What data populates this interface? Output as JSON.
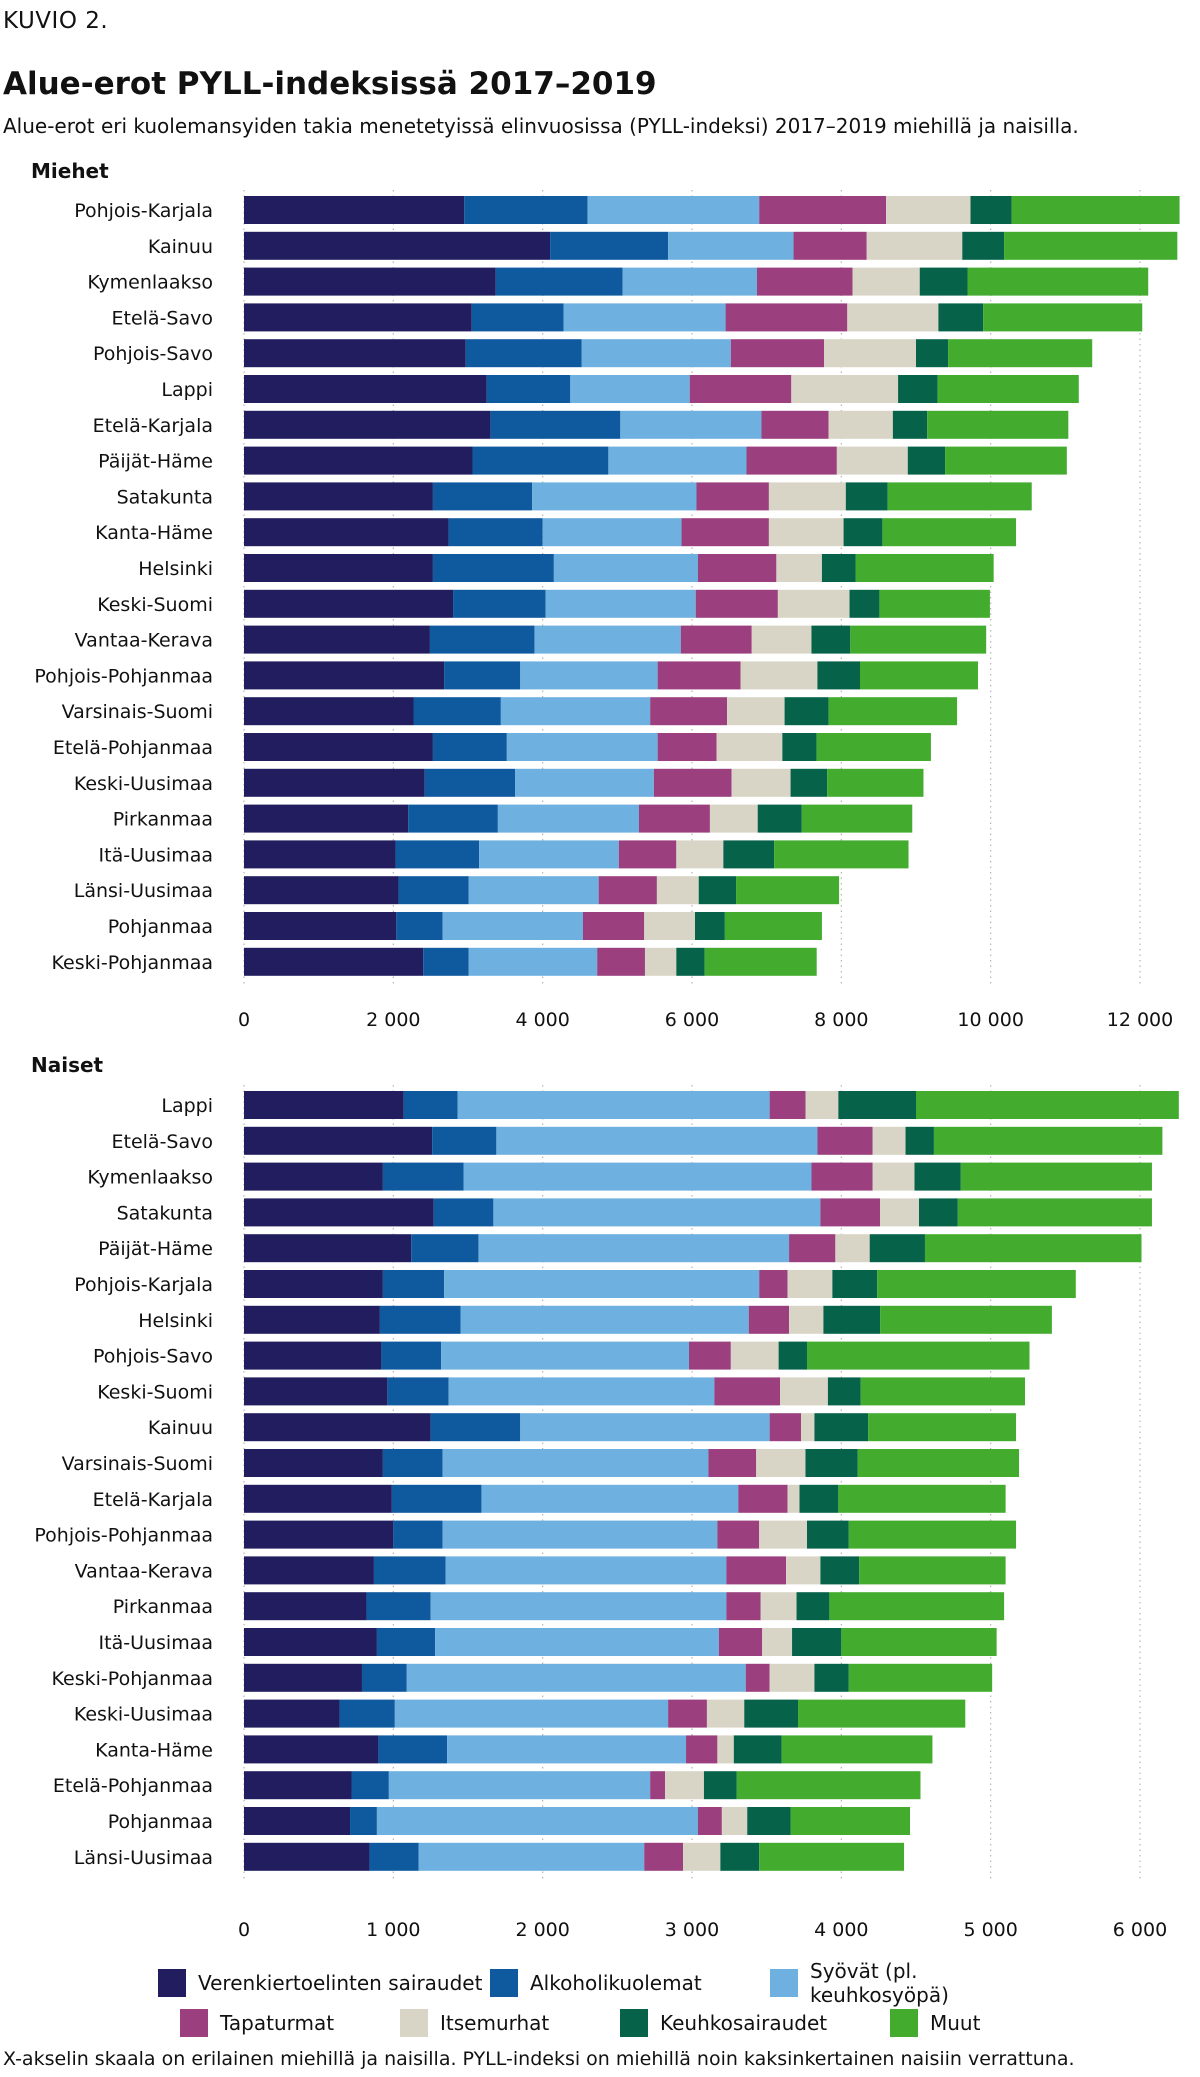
{
  "figure_label": "KUVIO 2.",
  "title": "Alue-erot PYLL-indeksissä 2017–2019",
  "subtitle": "Alue-erot eri kuolemansyiden takia menetetyissä elinvuosissa (PYLL-indeksi) 2017–2019 miehillä ja naisilla.",
  "footnote": "X-akselin skaala on erilainen miehillä ja naisilla. PYLL-indeksi on miehillä noin kaksinkertainen naisiin verrattuna.",
  "colors": {
    "Verenkiertoelinten sairaudet": "#211d5e",
    "Alkoholikuolemat": "#0f5a9e",
    "Syövät (pl. keuhkosyöpä)": "#6eb0df",
    "Tapaturmat": "#9b3f7f",
    "Itsemurhat": "#d9d5c6",
    "Keuhkosairaudet": "#07624a",
    "Muut": "#43ab2e"
  },
  "chart_data": [
    {
      "type": "bar",
      "orientation": "horizontal",
      "stacked": true,
      "title": "Miehet",
      "xlim": [
        0,
        12000
      ],
      "xticks": [
        0,
        2000,
        4000,
        6000,
        8000,
        10000,
        12000
      ],
      "xtick_labels": [
        "0",
        "2 000",
        "4 000",
        "6 000",
        "8 000",
        "10 000",
        "12 000"
      ],
      "grid": "vertical dotted",
      "categories": [
        "Pohjois-Karjala",
        "Kainuu",
        "Kymenlaakso",
        "Etelä-Savo",
        "Pohjois-Savo",
        "Lappi",
        "Etelä-Karjala",
        "Päijät-Häme",
        "Satakunta",
        "Kanta-Häme",
        "Helsinki",
        "Keski-Suomi",
        "Vantaa-Kerava",
        "Pohjois-Pohjanmaa",
        "Varsinais-Suomi",
        "Etelä-Pohjanmaa",
        "Keski-Uusimaa",
        "Pirkanmaa",
        "Itä-Uusimaa",
        "Länsi-Uusimaa",
        "Pohjanmaa",
        "Keski-Pohjanmaa"
      ],
      "series": [
        {
          "name": "Verenkiertoelinten sairaudet",
          "values": [
            2950,
            4100,
            3370,
            3050,
            2970,
            3250,
            3300,
            3060,
            2530,
            2740,
            2530,
            2800,
            2490,
            2680,
            2270,
            2530,
            2420,
            2200,
            2030,
            2070,
            2040,
            2400
          ]
        },
        {
          "name": "Alkoholikuolemat",
          "values": [
            1650,
            1580,
            1700,
            1230,
            1550,
            1120,
            1740,
            1820,
            1330,
            1260,
            1620,
            1240,
            1400,
            1020,
            1170,
            990,
            1210,
            1200,
            1120,
            940,
            620,
            610
          ]
        },
        {
          "name": "Syövät (pl. keuhkosyöpä)",
          "values": [
            2300,
            1680,
            1800,
            2170,
            2000,
            1600,
            1890,
            1850,
            2200,
            1860,
            1930,
            2010,
            1960,
            1840,
            2000,
            2020,
            1860,
            1890,
            1870,
            1740,
            1880,
            1720
          ]
        },
        {
          "name": "Tapaturmat",
          "values": [
            1700,
            980,
            1280,
            1630,
            1250,
            1360,
            900,
            1210,
            970,
            1170,
            1050,
            1100,
            950,
            1110,
            1030,
            790,
            1040,
            950,
            770,
            780,
            820,
            640
          ]
        },
        {
          "name": "Itsemurhat",
          "values": [
            1130,
            1280,
            900,
            1220,
            1230,
            1430,
            860,
            950,
            1030,
            1000,
            610,
            960,
            800,
            1030,
            770,
            880,
            790,
            640,
            630,
            560,
            680,
            420
          ]
        },
        {
          "name": "Keuhkosairaudet",
          "values": [
            550,
            560,
            640,
            600,
            430,
            530,
            460,
            500,
            560,
            520,
            450,
            400,
            520,
            570,
            590,
            460,
            490,
            590,
            680,
            500,
            400,
            380
          ]
        },
        {
          "name": "Muut",
          "values": [
            2250,
            2320,
            2420,
            2130,
            1930,
            1890,
            1890,
            1630,
            1930,
            1790,
            1850,
            1480,
            1820,
            1580,
            1720,
            1530,
            1290,
            1480,
            1800,
            1380,
            1300,
            1500
          ]
        }
      ]
    },
    {
      "type": "bar",
      "orientation": "horizontal",
      "stacked": true,
      "title": "Naiset",
      "xlim": [
        0,
        6000
      ],
      "xticks": [
        0,
        1000,
        2000,
        3000,
        4000,
        5000,
        6000
      ],
      "xtick_labels": [
        "0",
        "1 000",
        "2 000",
        "3 000",
        "4 000",
        "5 000",
        "6 000"
      ],
      "grid": "vertical dotted",
      "categories": [
        "Lappi",
        "Etelä-Savo",
        "Kymenlaakso",
        "Satakunta",
        "Päijät-Häme",
        "Pohjois-Karjala",
        "Helsinki",
        "Pohjois-Savo",
        "Keski-Suomi",
        "Kainuu",
        "Varsinais-Suomi",
        "Etelä-Karjala",
        "Pohjois-Pohjanmaa",
        "Vantaa-Kerava",
        "Pirkanmaa",
        "Itä-Uusimaa",
        "Keski-Pohjanmaa",
        "Keski-Uusimaa",
        "Kanta-Häme",
        "Etelä-Pohjanmaa",
        "Pohjanmaa",
        "Länsi-Uusimaa"
      ],
      "series": [
        {
          "name": "Verenkiertoelinten sairaudet",
          "values": [
            1070,
            1260,
            930,
            1270,
            1120,
            930,
            910,
            920,
            960,
            1250,
            930,
            990,
            1000,
            870,
            820,
            890,
            790,
            640,
            900,
            720,
            710,
            840
          ]
        },
        {
          "name": "Alkoholikuolemat",
          "values": [
            360,
            430,
            540,
            400,
            450,
            410,
            540,
            400,
            410,
            600,
            400,
            600,
            330,
            480,
            430,
            390,
            300,
            370,
            460,
            250,
            180,
            330
          ]
        },
        {
          "name": "Syövät (pl. keuhkosyöpä)",
          "values": [
            2090,
            2150,
            2330,
            2190,
            2080,
            2110,
            1930,
            1660,
            1780,
            1670,
            1780,
            1720,
            1840,
            1880,
            1980,
            1900,
            2270,
            1830,
            1600,
            1750,
            2150,
            1510
          ]
        },
        {
          "name": "Tapaturmat",
          "values": [
            240,
            370,
            410,
            400,
            310,
            190,
            270,
            280,
            440,
            210,
            320,
            330,
            280,
            400,
            230,
            290,
            160,
            260,
            210,
            100,
            160,
            260
          ]
        },
        {
          "name": "Itsemurhat",
          "values": [
            220,
            220,
            280,
            260,
            230,
            300,
            230,
            320,
            320,
            90,
            330,
            80,
            320,
            230,
            240,
            200,
            300,
            250,
            110,
            260,
            170,
            250
          ]
        },
        {
          "name": "Keuhkosairaudet",
          "values": [
            520,
            190,
            310,
            260,
            370,
            300,
            380,
            190,
            220,
            360,
            350,
            260,
            280,
            260,
            220,
            330,
            230,
            360,
            320,
            220,
            290,
            260
          ]
        },
        {
          "name": "Muut",
          "values": [
            1760,
            1530,
            1280,
            1300,
            1450,
            1330,
            1150,
            1490,
            1100,
            990,
            1080,
            1120,
            1120,
            980,
            1170,
            1040,
            960,
            1120,
            1010,
            1230,
            800,
            970
          ]
        }
      ]
    }
  ]
}
